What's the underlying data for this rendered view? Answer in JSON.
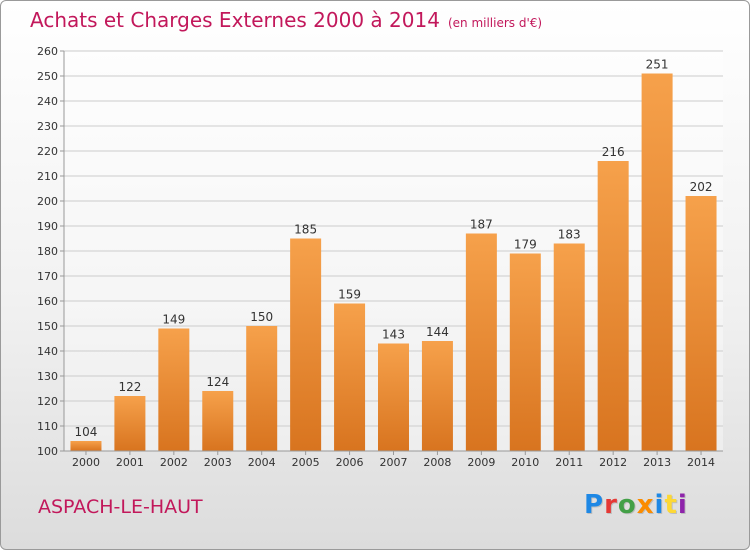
{
  "header": {
    "title": "Achats et Charges Externes 2000 à 2014",
    "subtitle": "(en milliers d'€)"
  },
  "footer": {
    "commune": "ASPACH-LE-HAUT",
    "logo": "Proxiti",
    "logo_colors": [
      "#1e88e5",
      "#e53935",
      "#43a047",
      "#fb8c00",
      "#1e88e5",
      "#fdd835",
      "#8e24aa"
    ]
  },
  "chart_data": {
    "type": "bar",
    "title": "Achats et Charges Externes 2000 à 2014",
    "subtitle": "(en milliers d'€)",
    "categories": [
      "2000",
      "2001",
      "2002",
      "2003",
      "2004",
      "2005",
      "2006",
      "2007",
      "2008",
      "2009",
      "2010",
      "2011",
      "2012",
      "2013",
      "2014"
    ],
    "values": [
      104,
      122,
      149,
      124,
      150,
      185,
      159,
      143,
      144,
      187,
      179,
      183,
      216,
      251,
      202
    ],
    "ylim": [
      100,
      260
    ],
    "yticks": [
      100,
      110,
      120,
      130,
      140,
      150,
      160,
      170,
      180,
      190,
      200,
      210,
      220,
      230,
      240,
      250,
      260
    ],
    "grid": true,
    "colors": {
      "bar_light": "#f6a14b",
      "bar_dark": "#d8741f",
      "grid": "#cccccc",
      "axis": "#999999"
    }
  }
}
